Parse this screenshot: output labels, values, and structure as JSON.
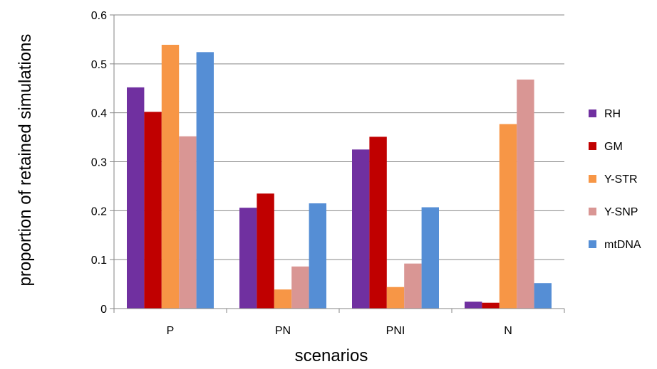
{
  "chart_data": {
    "type": "bar",
    "title": "",
    "xlabel": "scenarios",
    "ylabel": "proportion of retained simulations",
    "categories": [
      "P",
      "PN",
      "PNI",
      "N"
    ],
    "ylim": [
      0,
      0.6
    ],
    "yticks": [
      "0",
      "0.1",
      "0.2",
      "0.3",
      "0.4",
      "0.5",
      "0.6"
    ],
    "grid": true,
    "legend_position": "right",
    "series": [
      {
        "name": "RH",
        "color": "#7030a0",
        "values": [
          0.452,
          0.206,
          0.325,
          0.014
        ]
      },
      {
        "name": "GM",
        "color": "#c00000",
        "values": [
          0.402,
          0.235,
          0.351,
          0.012
        ]
      },
      {
        "name": "Y-STR",
        "color": "#f79646",
        "values": [
          0.539,
          0.039,
          0.044,
          0.377
        ]
      },
      {
        "name": "Y-SNP",
        "color": "#d99694",
        "values": [
          0.352,
          0.086,
          0.092,
          0.468
        ]
      },
      {
        "name": "mtDNA",
        "color": "#558ed5",
        "values": [
          0.524,
          0.215,
          0.207,
          0.052
        ]
      }
    ]
  }
}
